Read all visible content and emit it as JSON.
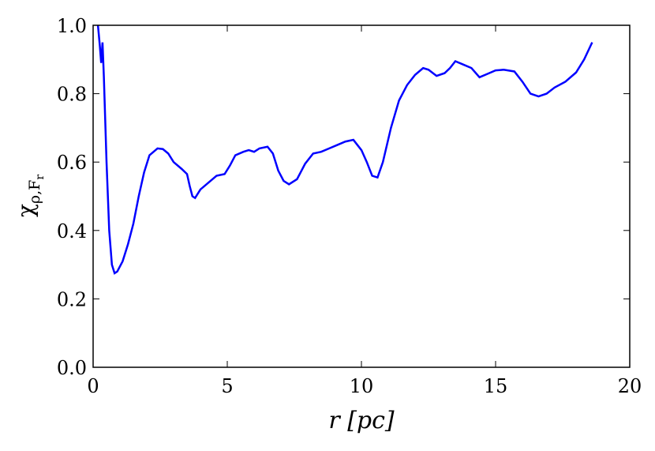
{
  "chart_data": {
    "type": "line",
    "xlabel": "r [pc]",
    "ylabel": [
      "χ",
      "ρ,F",
      "r"
    ],
    "xlim": [
      0,
      20
    ],
    "xticks": [
      0,
      5,
      10,
      15,
      20
    ],
    "ylim": [
      0,
      1
    ],
    "yticks": [
      {
        "value": 0,
        "label": "0.0"
      },
      {
        "value": 0.2,
        "label": "0.2"
      },
      {
        "value": 0.4,
        "label": "0.4"
      },
      {
        "value": 0.6,
        "label": "0.6"
      },
      {
        "value": 0.8,
        "label": "0.8"
      },
      {
        "value": 1,
        "label": "1.0"
      }
    ],
    "series": [
      {
        "color": "#0000ff",
        "x": [
          0.18,
          0.25,
          0.3,
          0.35,
          0.4,
          0.5,
          0.6,
          0.7,
          0.8,
          0.9,
          1.1,
          1.3,
          1.5,
          1.7,
          1.9,
          2.1,
          2.4,
          2.6,
          2.8,
          3.0,
          3.3,
          3.5,
          3.6,
          3.7,
          3.8,
          4.0,
          4.3,
          4.6,
          4.9,
          5.1,
          5.3,
          5.6,
          5.8,
          6.0,
          6.2,
          6.5,
          6.7,
          6.9,
          7.1,
          7.3,
          7.6,
          7.9,
          8.2,
          8.5,
          8.8,
          9.1,
          9.4,
          9.7,
          10.0,
          10.2,
          10.4,
          10.6,
          10.8,
          11.1,
          11.4,
          11.7,
          12.0,
          12.3,
          12.5,
          12.8,
          13.1,
          13.3,
          13.5,
          13.8,
          14.1,
          14.4,
          14.7,
          15.0,
          15.3,
          15.7,
          16.0,
          16.3,
          16.6,
          16.9,
          17.2,
          17.6,
          18.0,
          18.3,
          18.6
        ],
        "values": [
          1.0,
          0.94,
          0.89,
          0.95,
          0.85,
          0.6,
          0.4,
          0.3,
          0.275,
          0.28,
          0.31,
          0.36,
          0.42,
          0.5,
          0.57,
          0.62,
          0.64,
          0.638,
          0.625,
          0.6,
          0.58,
          0.565,
          0.53,
          0.5,
          0.495,
          0.52,
          0.54,
          0.56,
          0.565,
          0.59,
          0.62,
          0.63,
          0.635,
          0.63,
          0.64,
          0.645,
          0.625,
          0.575,
          0.545,
          0.535,
          0.55,
          0.595,
          0.625,
          0.63,
          0.64,
          0.65,
          0.66,
          0.665,
          0.635,
          0.6,
          0.56,
          0.555,
          0.6,
          0.7,
          0.78,
          0.825,
          0.855,
          0.875,
          0.87,
          0.852,
          0.86,
          0.875,
          0.895,
          0.885,
          0.875,
          0.848,
          0.858,
          0.868,
          0.87,
          0.865,
          0.835,
          0.8,
          0.792,
          0.8,
          0.818,
          0.835,
          0.862,
          0.9,
          0.95
        ]
      }
    ]
  }
}
